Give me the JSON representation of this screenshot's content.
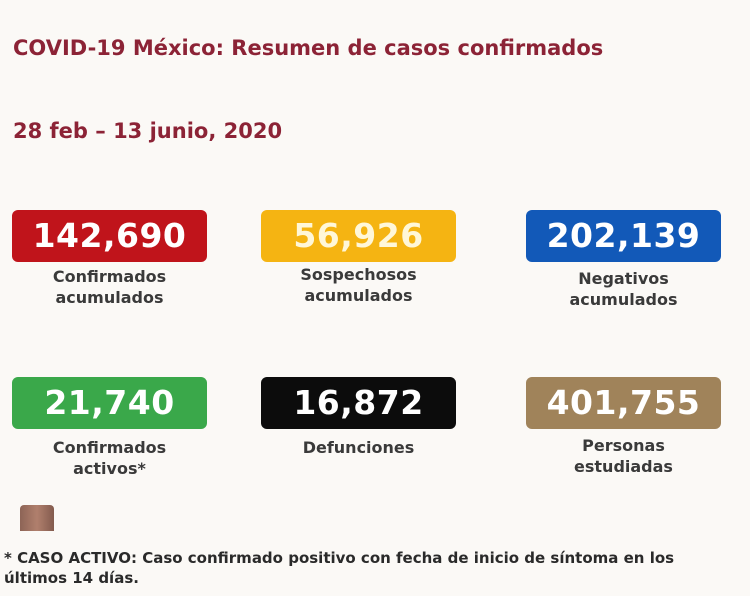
{
  "title": "COVID-19 México: Resumen de casos confirmados",
  "date_range": "28 feb – 13 junio, 2020",
  "cards": [
    {
      "value": "142,690",
      "label1": "Confirmados",
      "label2": "acumulados",
      "color": "#c0141b"
    },
    {
      "value": "56,926",
      "label1": "Sospechosos",
      "label2": "acumulados",
      "color": "#f5b412"
    },
    {
      "value": "202,139",
      "label1": "Negativos",
      "label2": "acumulados",
      "color": "#1259b8"
    },
    {
      "value": "21,740",
      "label1": "Confirmados",
      "label2": "activos*",
      "color": "#3aa84a"
    },
    {
      "value": "16,872",
      "label1": "Defunciones",
      "label2": "",
      "color": "#0c0c0c"
    },
    {
      "value": "401,755",
      "label1": "Personas",
      "label2": "estudiadas",
      "color": "#a0835a"
    }
  ],
  "footnote": "* CASO ACTIVO: Caso confirmado positivo con fecha de inicio de síntoma en los últimos 14 días."
}
